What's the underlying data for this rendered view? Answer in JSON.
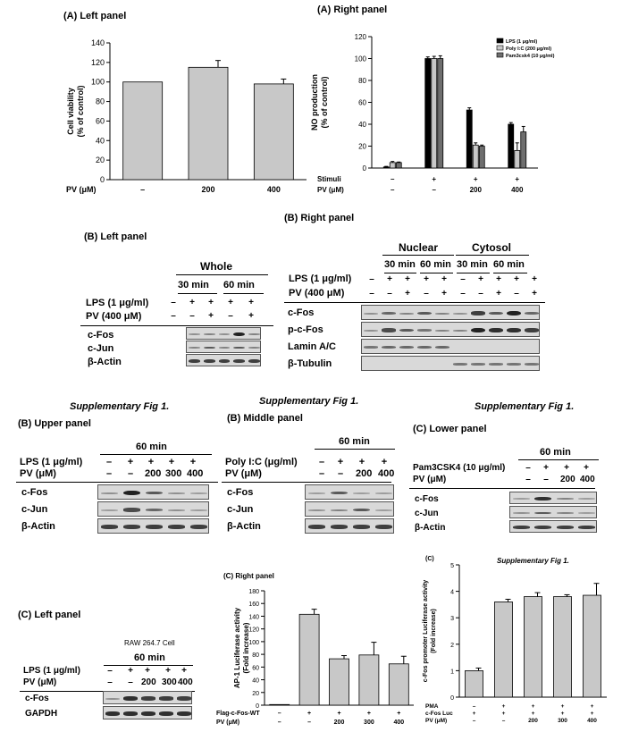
{
  "titles": {
    "a_left": "(A) Left panel",
    "a_right": "(A) Right panel",
    "b_right": "(B) Right panel",
    "b_left": "(B) Left panel",
    "supp1": "Supplementary Fig 1.",
    "supp2": "Supplementary Fig 1.",
    "supp3": "Supplementary Fig 1.",
    "supp4": "Supplementary Fig 1.",
    "b_upper": "(B) Upper panel",
    "b_middle": "(B) Middle panel",
    "c_lower": "(C) Lower panel",
    "c_left": "(C) Left panel",
    "c_right": "(C) Right panel",
    "c": "(C)"
  },
  "chart_data": [
    {
      "type": "bar",
      "ylabel": "Cell viability (% of control)",
      "ylim": [
        0,
        140
      ],
      "yticks": [
        "0",
        "20",
        "40",
        "60",
        "80",
        "100",
        "120",
        "140"
      ],
      "row_label": "PV (μM)",
      "categories": [
        "–",
        "200",
        "400"
      ],
      "values": [
        100,
        115,
        98
      ],
      "errors": [
        0,
        7,
        5
      ]
    },
    {
      "type": "bar",
      "ylabel": "NO production (% of control)",
      "ylim": [
        0,
        120
      ],
      "yticks": [
        "0",
        "20",
        "40",
        "60",
        "80",
        "100",
        "120"
      ],
      "rows": [
        {
          "label": "Stimuli",
          "values": [
            "–",
            "+",
            "+",
            "+"
          ]
        },
        {
          "label": "PV (μM)",
          "values": [
            "–",
            "–",
            "200",
            "400"
          ]
        }
      ],
      "series": [
        {
          "name": "LPS (1 μg/ml)",
          "color": "#000000",
          "values": [
            1,
            100,
            53,
            40
          ],
          "errors": [
            0.5,
            1.5,
            2,
            1.5
          ]
        },
        {
          "name": "Poly I:C (200 μg/ml)",
          "color": "#c8c8c8",
          "values": [
            5,
            100,
            21,
            16
          ],
          "errors": [
            1,
            2,
            2,
            7
          ]
        },
        {
          "name": "Pam3csk4 (10 μg/ml)",
          "color": "#6e6e6e",
          "values": [
            5,
            100,
            20,
            33
          ],
          "errors": [
            0.5,
            2.5,
            1,
            5
          ]
        }
      ]
    },
    {
      "type": "bar",
      "ylabel": "AP-1 Luciferase activity (Fold increase)",
      "ylim": [
        0,
        180
      ],
      "yticks": [
        "0",
        "20",
        "40",
        "60",
        "80",
        "100",
        "120",
        "140",
        "160",
        "180"
      ],
      "rows": [
        {
          "label": "Flag-c-Fos-WT",
          "values": [
            "–",
            "+",
            "+",
            "+",
            "+"
          ]
        },
        {
          "label": "PV (μM)",
          "values": [
            "–",
            "–",
            "200",
            "300",
            "400"
          ]
        }
      ],
      "values": [
        1,
        143,
        73,
        79,
        65
      ],
      "errors": [
        0,
        8,
        5,
        20,
        12
      ]
    },
    {
      "type": "bar",
      "ylabel": "c-Fos promoter Luciferase activity (Fold increase)",
      "ylim": [
        0,
        5
      ],
      "yticks": [
        "0",
        "1",
        "2",
        "3",
        "4",
        "5"
      ],
      "rows": [
        {
          "label": "PMA",
          "values": [
            "–",
            "+",
            "+",
            "+",
            "+"
          ]
        },
        {
          "label": "c-Fos Luc",
          "values": [
            "+",
            "+",
            "+",
            "+",
            "+"
          ]
        },
        {
          "label": "PV (μM)",
          "values": [
            "–",
            "–",
            "200",
            "300",
            "400"
          ]
        }
      ],
      "values": [
        1.0,
        3.6,
        3.8,
        3.8,
        3.85
      ],
      "errors": [
        0.1,
        0.1,
        0.15,
        0.07,
        0.45
      ]
    }
  ],
  "blots": {
    "whole": {
      "header": "Whole",
      "times": [
        "30 min",
        "60 min"
      ],
      "lps_label": "LPS (1 μg/ml)",
      "pv_label": "PV (400 μM)",
      "lps": [
        "–",
        "+",
        "+",
        "+",
        "+"
      ],
      "pv": [
        "–",
        "–",
        "+",
        "–",
        "+"
      ],
      "rows": [
        "c-Fos",
        "c-Jun",
        "β-Actin"
      ]
    },
    "fraction": {
      "nuclear": "Nuclear",
      "cytosol": "Cytosol",
      "times": [
        "30 min",
        "60 min",
        "30 min",
        "60 min"
      ],
      "lps_label": "LPS (1 μg/ml)",
      "pv_label": "PV (400 μM)",
      "lps": [
        "–",
        "+",
        "+",
        "+",
        "+",
        "–",
        "+",
        "+",
        "+",
        "+"
      ],
      "pv": [
        "–",
        "–",
        "+",
        "–",
        "+",
        "–",
        "–",
        "+",
        "–",
        "+"
      ],
      "rows": [
        "c-Fos",
        "p-c-Fos",
        "Lamin A/C",
        "β-Tubulin"
      ]
    },
    "upper": {
      "time": "60 min",
      "stim_label": "LPS (1 μg/ml)",
      "pv_label": "PV (μM)",
      "stim": [
        "–",
        "+",
        "+",
        "+",
        "+"
      ],
      "pv": [
        "–",
        "–",
        "200",
        "300",
        "400"
      ],
      "rows": [
        "c-Fos",
        "c-Jun",
        "β-Actin"
      ]
    },
    "middle": {
      "time": "60 min",
      "stim_label": "Poly I:C (μg/ml)",
      "pv_label": "PV (μM)",
      "stim": [
        "–",
        "+",
        "+",
        "+"
      ],
      "pv": [
        "–",
        "–",
        "200",
        "400"
      ],
      "rows": [
        "c-Fos",
        "c-Jun",
        "β-Actin"
      ]
    },
    "lower": {
      "time": "60 min",
      "stim_label": "Pam3CSK4 (10 μg/ml)",
      "pv_label": "PV (μM)",
      "stim": [
        "–",
        "+",
        "+",
        "+"
      ],
      "pv": [
        "–",
        "–",
        "200",
        "400"
      ],
      "rows": [
        "c-Fos",
        "c-Jun",
        "β-Actin"
      ]
    },
    "rtpcr": {
      "cell": "RAW 264.7 Cell",
      "time": "60 min",
      "stim_label": "LPS (1 μg/ml)",
      "pv_label": "PV (μM)",
      "stim": [
        "–",
        "+",
        "+",
        "+",
        "+"
      ],
      "pv": [
        "–",
        "–",
        "200",
        "300",
        "400"
      ],
      "rows": [
        "c-Fos",
        "GAPDH"
      ]
    }
  }
}
